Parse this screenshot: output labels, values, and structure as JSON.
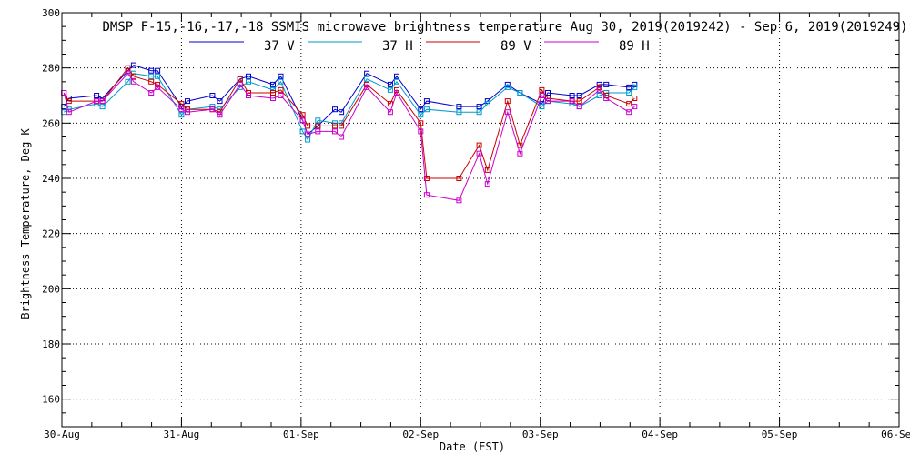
{
  "chart_data": {
    "type": "line",
    "title": "DMSP F-15,-16,-17,-18 SSMIS microwave brightness temperature Aug 30, 2019(2019242) - Sep  6, 2019(2019249)",
    "xlabel": "Date (EST)",
    "ylabel": "Brightness Temperature, Deg K",
    "xlim": [
      "2019-08-30 00:00",
      "2019-09-06 00:00"
    ],
    "ylim": [
      150,
      300
    ],
    "x_ticks": [
      "30-Aug",
      "31-Aug",
      "01-Sep",
      "02-Sep",
      "03-Sep",
      "04-Sep",
      "05-Sep",
      "06-Sep"
    ],
    "y_ticks": [
      160,
      180,
      200,
      220,
      240,
      260,
      280,
      300
    ],
    "grid": true,
    "legend_position": "top-center",
    "x": [
      "2019-08-30 00:24",
      "2019-08-30 01:26",
      "2019-08-30 06:57",
      "2019-08-30 08:09",
      "2019-08-30 13:14",
      "2019-08-30 14:24",
      "2019-08-30 17:56",
      "2019-08-30 19:12",
      "2019-08-31 00:00",
      "2019-08-31 01:12",
      "2019-08-31 06:12",
      "2019-08-31 07:41",
      "2019-08-31 11:45",
      "2019-08-31 13:26",
      "2019-08-31 18:22",
      "2019-08-31 19:55",
      "2019-09-01 00:19",
      "2019-09-01 01:19",
      "2019-09-01 03:22",
      "2019-09-01 06:47",
      "2019-09-01 08:05",
      "2019-09-01 13:12",
      "2019-09-01 17:54",
      "2019-09-01 19:12",
      "2019-09-02 00:00",
      "2019-09-02 01:12",
      "2019-09-02 07:41",
      "2019-09-02 11:45",
      "2019-09-02 13:26",
      "2019-09-02 17:27",
      "2019-09-02 19:55",
      "2019-09-03 00:19",
      "2019-09-03 01:31",
      "2019-09-03 06:22",
      "2019-09-03 07:51",
      "2019-09-03 11:52",
      "2019-09-03 13:14",
      "2019-09-03 17:48",
      "2019-09-03 18:55"
    ],
    "series": [
      {
        "name": "37 V",
        "color": "#0000cc",
        "values": [
          266,
          269,
          270,
          269,
          279,
          281,
          279,
          279,
          266,
          268,
          270,
          268,
          276,
          277,
          274,
          277,
          261,
          256,
          259,
          265,
          264,
          278,
          274,
          277,
          265,
          268,
          266,
          266,
          268,
          274,
          271,
          267,
          271,
          270,
          270,
          274,
          274,
          273,
          274
        ]
      },
      {
        "name": "37 H",
        "color": "#0099cc",
        "values": [
          264,
          265,
          267,
          266,
          275,
          278,
          277,
          277,
          263,
          265,
          266,
          265,
          273,
          275,
          272,
          275,
          257,
          254,
          261,
          260,
          260,
          276,
          272,
          275,
          263,
          265,
          264,
          264,
          267,
          273,
          271,
          266,
          268,
          267,
          266,
          270,
          271,
          271,
          273
        ]
      },
      {
        "name": "89 V",
        "color": "#cc0000",
        "values": [
          271,
          268,
          268,
          268,
          280,
          277,
          275,
          274,
          267,
          265,
          265,
          264,
          276,
          271,
          271,
          272,
          263,
          259,
          259,
          259,
          259,
          274,
          267,
          272,
          260,
          240,
          240,
          252,
          243,
          268,
          252,
          272,
          269,
          268,
          268,
          273,
          270,
          267,
          269
        ]
      },
      {
        "name": "89 H",
        "color": "#cc00cc",
        "values": [
          271,
          264,
          268,
          268,
          278,
          275,
          271,
          273,
          265,
          264,
          265,
          263,
          274,
          270,
          269,
          270,
          261,
          256,
          257,
          257,
          255,
          273,
          264,
          271,
          257,
          234,
          232,
          249,
          238,
          264,
          249,
          270,
          268,
          268,
          266,
          272,
          269,
          264,
          266
        ]
      }
    ]
  }
}
